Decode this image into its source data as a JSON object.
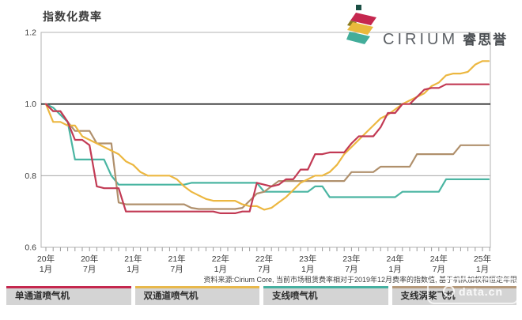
{
  "header": {
    "title": "指数化费率"
  },
  "logo": {
    "brand": "CIRIUM",
    "brand_cn": "睿思誉",
    "mark_colors": {
      "square": "#1b4f45",
      "crimson": "#c5274f",
      "gold": "#e9b93c",
      "teal": "#43ad9a"
    }
  },
  "chart_data": {
    "type": "line",
    "title": "指数化费率",
    "x_start": "2020-01",
    "x_step": "1 month",
    "n_points": 61,
    "x_tick_labels": [
      [
        "20年",
        "1月"
      ],
      [
        "20年",
        "7月"
      ],
      [
        "21年",
        "1月"
      ],
      [
        "21年",
        "7月"
      ],
      [
        "22年",
        "1月"
      ],
      [
        "22年",
        "7月"
      ],
      [
        "23年",
        "1月"
      ],
      [
        "23年",
        "7月"
      ],
      [
        "24年",
        "1月"
      ],
      [
        "24年",
        "7月"
      ],
      [
        "25年",
        "1月"
      ]
    ],
    "ylim": [
      0.6,
      1.2
    ],
    "y_ticks": [
      1.2,
      1.0,
      0.8,
      0.6
    ],
    "baseline": 1.0,
    "gridline": 0.8,
    "grid": "horizontal-only",
    "legend_position": "bottom",
    "series": [
      {
        "name": "单通道喷气机",
        "color": "#c23a54",
        "values": [
          1.0,
          0.98,
          0.98,
          0.95,
          0.9,
          0.9,
          0.885,
          0.77,
          0.765,
          0.765,
          0.765,
          0.7,
          0.7,
          0.7,
          0.7,
          0.7,
          0.7,
          0.7,
          0.7,
          0.7,
          0.7,
          0.7,
          0.7,
          0.7,
          0.695,
          0.695,
          0.695,
          0.7,
          0.7,
          0.78,
          0.775,
          0.77,
          0.775,
          0.79,
          0.79,
          0.817,
          0.817,
          0.86,
          0.86,
          0.865,
          0.865,
          0.865,
          0.89,
          0.91,
          0.91,
          0.91,
          0.935,
          0.975,
          0.975,
          1.0,
          1.0,
          1.02,
          1.04,
          1.045,
          1.045,
          1.055,
          1.055,
          1.055,
          1.055,
          1.055,
          1.055
        ]
      },
      {
        "name": "双通道喷气机",
        "color": "#ecb740",
        "values": [
          1.0,
          0.95,
          0.95,
          0.94,
          0.94,
          0.91,
          0.9,
          0.89,
          0.88,
          0.87,
          0.86,
          0.84,
          0.83,
          0.81,
          0.8,
          0.8,
          0.8,
          0.8,
          0.79,
          0.77,
          0.755,
          0.745,
          0.735,
          0.73,
          0.73,
          0.73,
          0.73,
          0.72,
          0.715,
          0.715,
          0.705,
          0.71,
          0.725,
          0.74,
          0.76,
          0.78,
          0.79,
          0.8,
          0.8,
          0.81,
          0.83,
          0.86,
          0.88,
          0.9,
          0.92,
          0.94,
          0.96,
          0.97,
          0.985,
          1.0,
          1.01,
          1.02,
          1.03,
          1.05,
          1.06,
          1.08,
          1.085,
          1.085,
          1.09,
          1.11,
          1.12
        ]
      },
      {
        "name": "支线喷气机",
        "color": "#4ab5a2",
        "values": [
          1.0,
          0.99,
          0.97,
          0.95,
          0.845,
          0.845,
          0.845,
          0.845,
          0.845,
          0.8,
          0.775,
          0.775,
          0.775,
          0.775,
          0.775,
          0.775,
          0.775,
          0.775,
          0.775,
          0.775,
          0.78,
          0.78,
          0.78,
          0.78,
          0.78,
          0.78,
          0.78,
          0.78,
          0.78,
          0.78,
          0.755,
          0.755,
          0.755,
          0.755,
          0.755,
          0.755,
          0.755,
          0.77,
          0.77,
          0.74,
          0.74,
          0.74,
          0.74,
          0.74,
          0.74,
          0.74,
          0.74,
          0.74,
          0.74,
          0.755,
          0.755,
          0.755,
          0.755,
          0.755,
          0.755,
          0.79,
          0.79,
          0.79,
          0.79,
          0.79,
          0.79
        ]
      },
      {
        "name": "支线涡桨飞机",
        "color": "#b0906c",
        "values": [
          1.0,
          0.98,
          0.98,
          0.95,
          0.925,
          0.925,
          0.925,
          0.89,
          0.89,
          0.89,
          0.725,
          0.72,
          0.72,
          0.72,
          0.72,
          0.72,
          0.72,
          0.72,
          0.72,
          0.72,
          0.71,
          0.707,
          0.707,
          0.707,
          0.707,
          0.707,
          0.707,
          0.71,
          0.73,
          0.75,
          0.755,
          0.77,
          0.785,
          0.785,
          0.785,
          0.785,
          0.785,
          0.785,
          0.785,
          0.785,
          0.785,
          0.785,
          0.81,
          0.81,
          0.81,
          0.81,
          0.825,
          0.825,
          0.825,
          0.825,
          0.825,
          0.86,
          0.86,
          0.86,
          0.86,
          0.86,
          0.86,
          0.885,
          0.885,
          0.885,
          0.885
        ]
      }
    ]
  },
  "legend": {
    "items": [
      {
        "label": "单通道喷气机",
        "color": "#c5274e"
      },
      {
        "label": "双通道喷气机",
        "color": "#e8b84b"
      },
      {
        "label": "支线喷气机",
        "color": "#45b0a0"
      },
      {
        "label": "支线涡桨飞机",
        "color": "#b5997a"
      }
    ]
  },
  "source_note": "资料来源:Cirium Core, 当前市场租赁费率相对于2019年12月费率的指数值, 基于机队加权和恒定年限",
  "watermark": {
    "text": "data.cn"
  },
  "colors": {
    "baseline_line": "#1a1a1a",
    "gridline": "#9a9a9a",
    "frame": "#b3b3b3",
    "tick": "#999999",
    "axis_text": "#3a3a3a",
    "legend_bg": "#d4d4d4"
  }
}
